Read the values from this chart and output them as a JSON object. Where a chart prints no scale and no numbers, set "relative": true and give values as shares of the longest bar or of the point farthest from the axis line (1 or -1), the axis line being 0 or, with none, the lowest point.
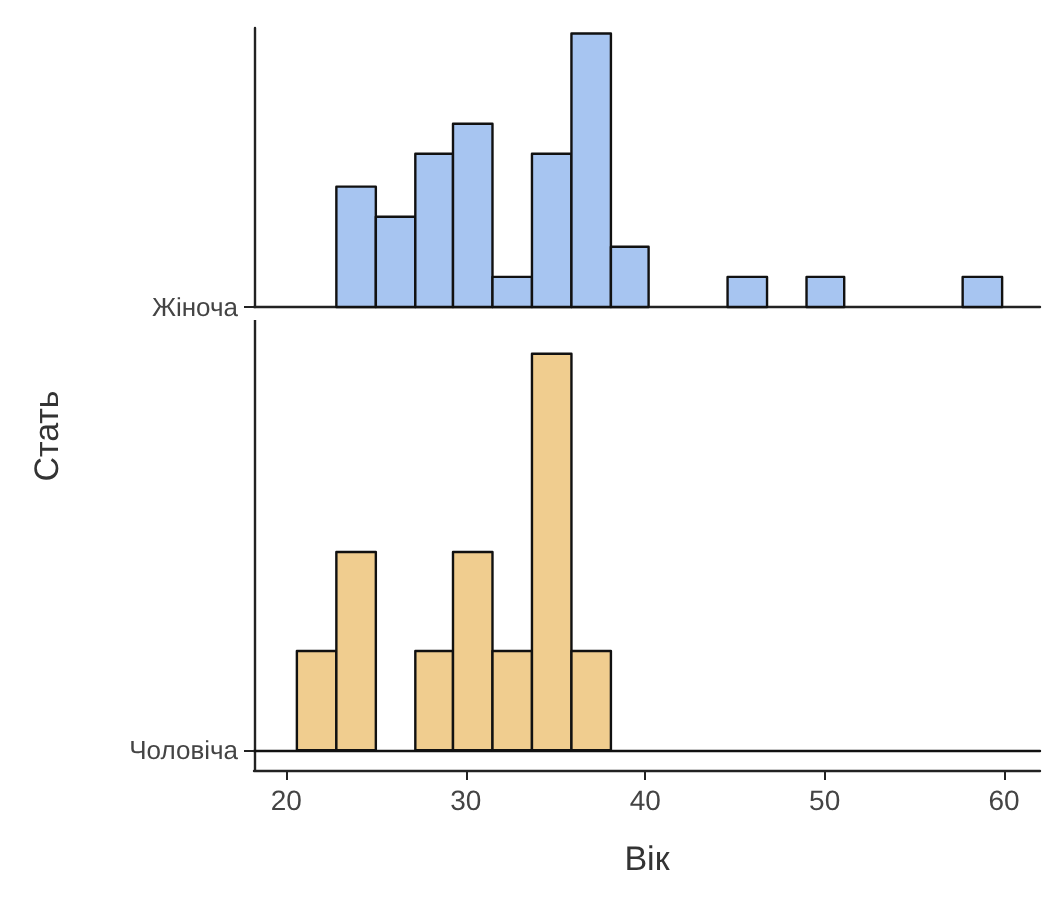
{
  "chart_data": [
    {
      "type": "bar",
      "ylabel": "Стать",
      "relative": true,
      "grid": false,
      "tick_labels": false,
      "annotations": [
        "Жіноча"
      ],
      "x": [
        19.5,
        21.7,
        23.9,
        26.1,
        28.2,
        30.4,
        32.6,
        34.8,
        37.0,
        39.1,
        41.3,
        43.5,
        45.7,
        47.9,
        50.0,
        52.2,
        54.4,
        56.6,
        58.8,
        60.9
      ],
      "color": "#a7c5f1",
      "values": [
        0,
        0,
        0.44,
        0.33,
        0.56,
        0.67,
        0.11,
        0.56,
        1,
        0.22,
        0,
        0,
        0.11,
        0,
        0.11,
        0,
        0,
        0,
        0.11,
        0
      ],
      "xlim": [
        18.2,
        62
      ]
    },
    {
      "type": "bar",
      "xlabel": "Вік",
      "relative": true,
      "grid": false,
      "tick_labels": "x",
      "annotations": [
        "Чоловіча"
      ],
      "x": [
        19.5,
        21.7,
        23.9,
        26.1,
        28.2,
        30.4,
        32.6,
        34.8,
        37.0,
        39.1,
        41.3,
        43.5,
        45.7,
        47.9,
        50.0,
        52.2,
        54.4,
        56.6,
        58.8,
        60.9
      ],
      "color": "#f0cd8f",
      "values": [
        0,
        0.25,
        0.5,
        0,
        0.25,
        0.5,
        0.25,
        1,
        0.25,
        0,
        0,
        0,
        0,
        0,
        0,
        0,
        0,
        0,
        0,
        0
      ],
      "xlim": [
        18.2,
        62
      ],
      "xticks": [
        20,
        30,
        40,
        50,
        60
      ]
    }
  ]
}
